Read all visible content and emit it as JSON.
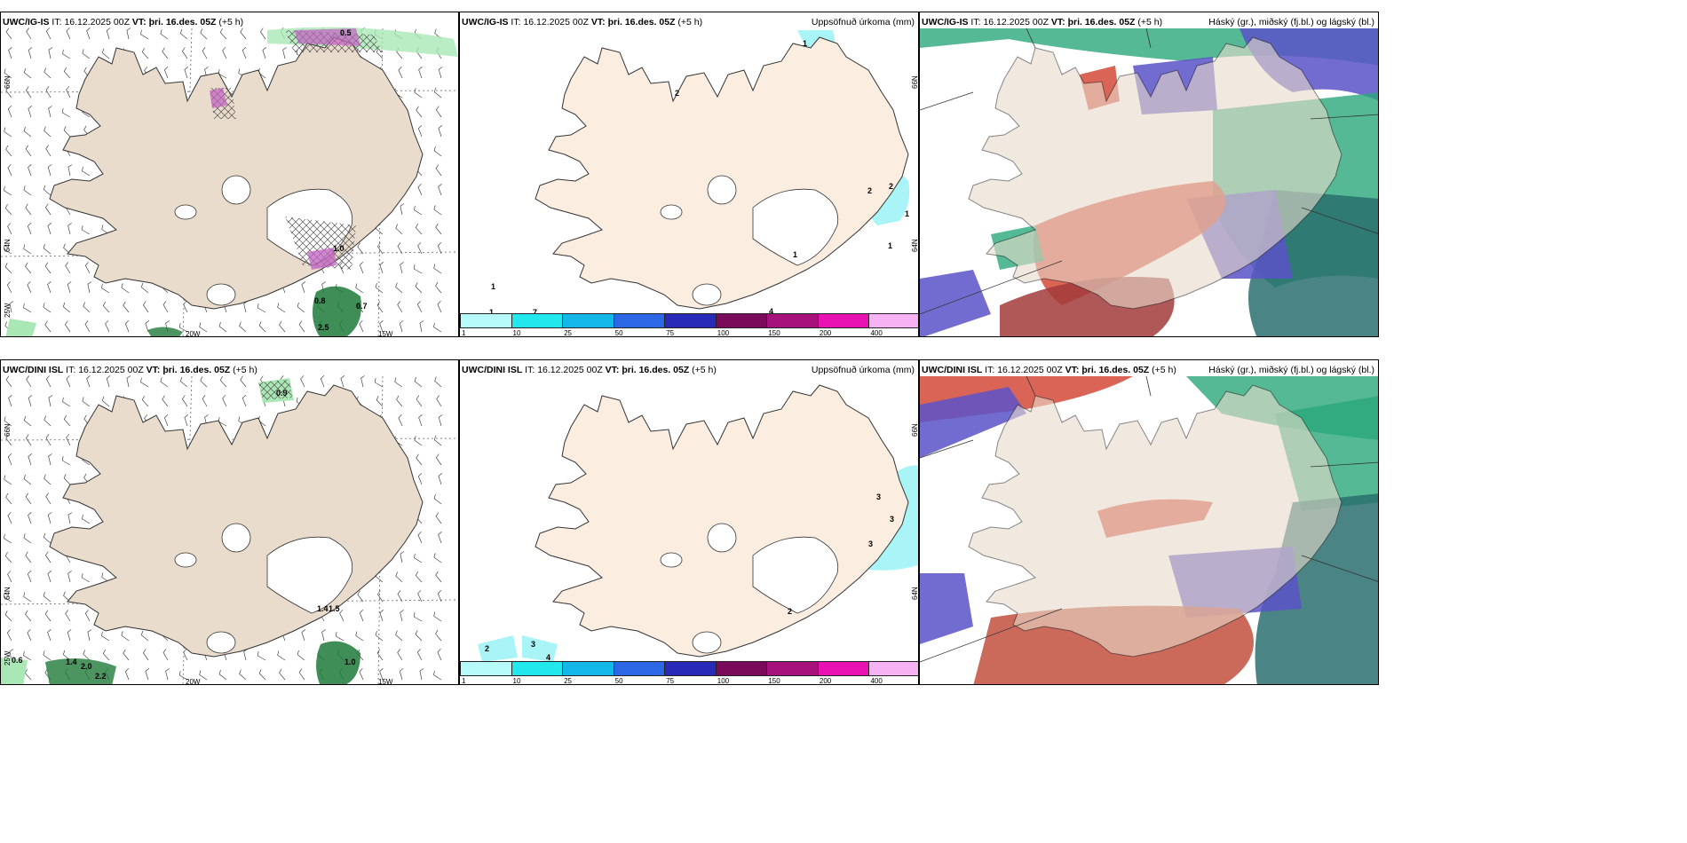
{
  "colors": {
    "land": "#e9dccc",
    "land_light": "#fbeee1",
    "glacier": "#ffffff",
    "hatch": "#555555",
    "light_green": "#a9e8b4",
    "dark_green": "#1f7a3a",
    "magenta": "#c060c0",
    "cyan": "#a8f4f6",
    "cloud_high": "#d44a3a",
    "cloud_mid": "#5a52c8",
    "cloud_low": "#2aa87a"
  },
  "top": {
    "wind": {
      "model": "UWC/IG-IS",
      "it_label": "IT:",
      "it_value": "16.12.2025 00Z",
      "vt_label": "VT:",
      "vt_value": "þri. 16.des. 05Z",
      "lead": "(+5 h)",
      "lat_66": "66N",
      "lat_64": "64N",
      "lon_25": "25W",
      "lon_20": "20W",
      "lon_15": "15W",
      "values": [
        "1.0",
        "0.8",
        "0.7",
        "2.5",
        "0.5"
      ]
    },
    "precip": {
      "model": "UWC/IG-IS",
      "it_label": "IT:",
      "it_value": "16.12.2025 00Z",
      "vt_label": "VT:",
      "vt_value": "þri. 16.des. 05Z",
      "lead": "(+5 h)",
      "right_title": "Uppsöfnuð úrkoma (mm)",
      "lat_66": "66N",
      "lat_64": "64N",
      "values": [
        "1",
        "2",
        "2",
        "2",
        "1",
        "1",
        "1",
        "1",
        "1",
        "7",
        "4"
      ]
    },
    "cloud": {
      "model": "UWC/IG-IS",
      "it_label": "IT:",
      "it_value": "16.12.2025 00Z",
      "vt_label": "VT:",
      "vt_value": "þri. 16.des. 05Z",
      "lead": "(+5 h)",
      "right_title": "Háský (gr.), miðský (fj.bl.) og lágský (bl.)"
    }
  },
  "bottom": {
    "wind": {
      "model": "UWC/DINI ISL",
      "it_label": "IT:",
      "it_value": "16.12.2025 00Z",
      "vt_label": "VT:",
      "vt_value": "þri. 16.des. 05Z",
      "lead": "(+5 h)",
      "lat_66": "66N",
      "lat_64": "64N",
      "lon_25": "25W",
      "lon_20": "20W",
      "lon_15": "15W",
      "values": [
        "0.9",
        "0.6",
        "1.4",
        "2.0",
        "2.2",
        "1.0",
        "1.4",
        "1.5"
      ]
    },
    "precip": {
      "model": "UWC/DINI ISL",
      "it_label": "IT:",
      "it_value": "16.12.2025 00Z",
      "vt_label": "VT:",
      "vt_value": "þri. 16.des. 05Z",
      "lead": "(+5 h)",
      "right_title": "Uppsöfnuð úrkoma (mm)",
      "lat_66": "66N",
      "lat_64": "64N",
      "values": [
        "3",
        "3",
        "3",
        "2",
        "2",
        "3",
        "4"
      ]
    },
    "cloud": {
      "model": "UWC/DINI ISL",
      "it_label": "IT:",
      "it_value": "16.12.2025 00Z",
      "vt_label": "VT:",
      "vt_value": "þri. 16.des. 05Z",
      "lead": "(+5 h)",
      "right_title": "Háský (gr.), miðský (fj.bl.) og lágský (bl.)"
    }
  },
  "precip_scale": {
    "ticks": [
      "1",
      "10",
      "25",
      "50",
      "75",
      "100",
      "150",
      "200",
      "400"
    ],
    "colors": [
      "#b6fafa",
      "#22e8ee",
      "#14b8e8",
      "#2c68e6",
      "#2a2ab8",
      "#7a0a5a",
      "#a6127a",
      "#e812b2",
      "#f6b2f2"
    ]
  }
}
